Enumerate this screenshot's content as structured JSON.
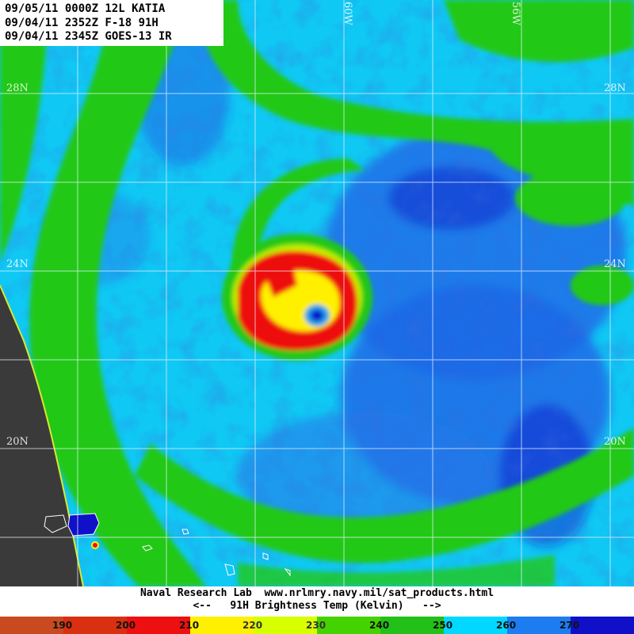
{
  "header": {
    "line1": "09/05/11 0000Z 12L KATIA",
    "line2": "09/04/11 2352Z F-18 91H",
    "line3": "09/04/11 2345Z GOES-13 IR"
  },
  "map": {
    "lat_labels": [
      "28N",
      "24N",
      "20N"
    ],
    "lon_labels": [
      "60W",
      "56W"
    ]
  },
  "footer": {
    "credit": "Naval Research Lab  www.nrlmry.navy.mil/sat_products.html",
    "legend_title": "<--   91H Brightness Temp (Kelvin)   -->"
  },
  "colorbar": {
    "segments": [
      {
        "color": "#c84a1e"
      },
      {
        "color": "#d83010"
      },
      {
        "color": "#ee1010"
      },
      {
        "color": "#fff000"
      },
      {
        "color": "#d8ff00"
      },
      {
        "color": "#44d200"
      },
      {
        "color": "#22c018"
      },
      {
        "color": "#00d8ff"
      },
      {
        "color": "#1c7cf0"
      },
      {
        "color": "#1010c8"
      }
    ],
    "labels": [
      "190",
      "200",
      "210",
      "220",
      "230",
      "240",
      "250",
      "260",
      "270"
    ]
  }
}
